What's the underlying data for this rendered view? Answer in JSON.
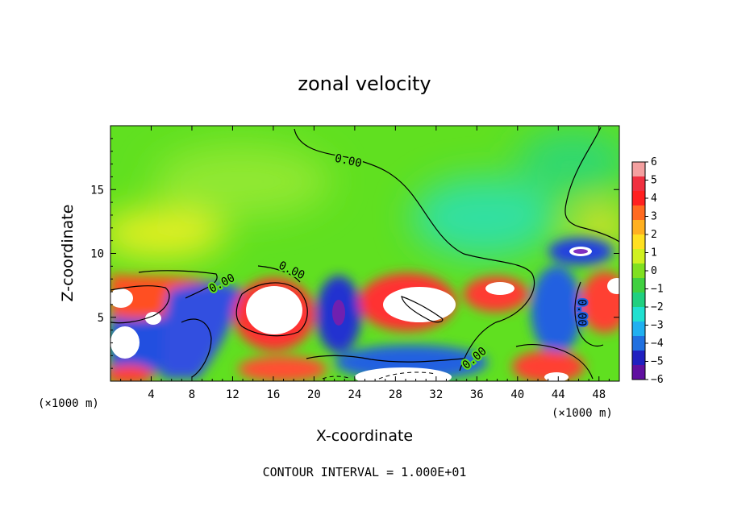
{
  "chart_data": {
    "type": "heatmap",
    "title": "zonal velocity",
    "xlabel": "X-coordinate",
    "ylabel": "Z-coordinate",
    "x_unit": "(×1000 m)",
    "y_unit": "(×1000 m)",
    "xlim": [
      0,
      50
    ],
    "ylim": [
      0,
      20
    ],
    "x_ticks": [
      4,
      8,
      12,
      16,
      20,
      24,
      28,
      32,
      36,
      40,
      44,
      48
    ],
    "y_ticks": [
      5,
      10,
      15
    ],
    "colorbar": {
      "min": -6,
      "max": 6,
      "ticks": [
        6,
        5,
        4,
        3,
        2,
        1,
        0,
        -1,
        -2,
        -3,
        -4,
        -5,
        -6
      ],
      "colors": [
        "#f4a0a0",
        "#f03040",
        "#ff2020",
        "#ff6a20",
        "#ffb020",
        "#ffe020",
        "#d0f020",
        "#80e020",
        "#40d040",
        "#20d080",
        "#20e0d0",
        "#20b0f0",
        "#2070e0",
        "#2020c0",
        "#6010a0"
      ]
    },
    "contour_labels": [
      "0.00",
      "0.00",
      "0.00",
      "0.00",
      "0.00"
    ],
    "contour_interval_text": "CONTOUR INTERVAL = 1.000E+01",
    "features": [
      {
        "x": 30,
        "z": 5.5,
        "value": 8
      },
      {
        "x": 16,
        "z": 5.5,
        "value": 7
      },
      {
        "x": 1,
        "z": 2,
        "value": 7
      },
      {
        "x": 42,
        "z": 1.2,
        "value": 6
      },
      {
        "x": 22,
        "z": 5.0,
        "value": -6
      },
      {
        "x": 46,
        "z": 10.0,
        "value": -6
      },
      {
        "x": 6,
        "z": 2.5,
        "value": -5
      },
      {
        "x": 11,
        "z": 6.0,
        "value": -4
      },
      {
        "x": 45,
        "z": 5.0,
        "value": -4
      },
      {
        "x": 4,
        "z": 11.5,
        "value": 2.5
      },
      {
        "x": 30,
        "z": 15,
        "value": 0.6
      },
      {
        "x": 38,
        "z": 13,
        "value": -1.8
      }
    ]
  }
}
